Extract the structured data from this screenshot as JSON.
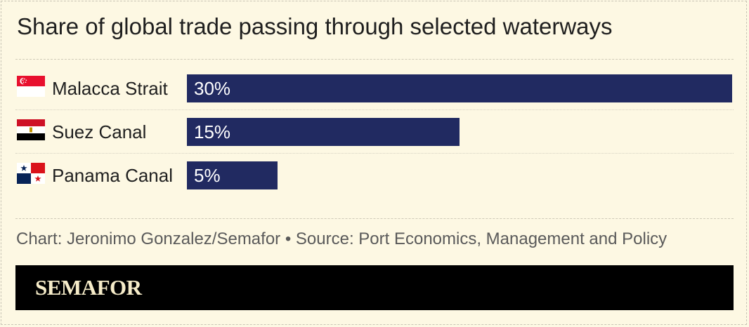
{
  "title": "Share of global trade passing through selected waterways",
  "credit": "Chart: Jeronimo Gonzalez/Semafor • Source: Port Economics, Management and Policy",
  "brand": "SEMAFOR",
  "colors": {
    "background": "#fdf8e3",
    "bar": "#212a61",
    "footer": "#000000",
    "brand": "#f6ecc9"
  },
  "chart_data": {
    "type": "bar",
    "orientation": "horizontal",
    "categories": [
      "Malacca Strait",
      "Suez Canal",
      "Panama Canal"
    ],
    "values": [
      30,
      15,
      5
    ],
    "value_labels": [
      "30%",
      "15%",
      "5%"
    ],
    "category_icons": [
      "singapore-flag-icon",
      "egypt-flag-icon",
      "panama-flag-icon"
    ],
    "title": "Share of global trade passing through selected waterways",
    "xlabel": "",
    "ylabel": "",
    "xlim": [
      0,
      30
    ],
    "grid": false,
    "legend": "none"
  }
}
